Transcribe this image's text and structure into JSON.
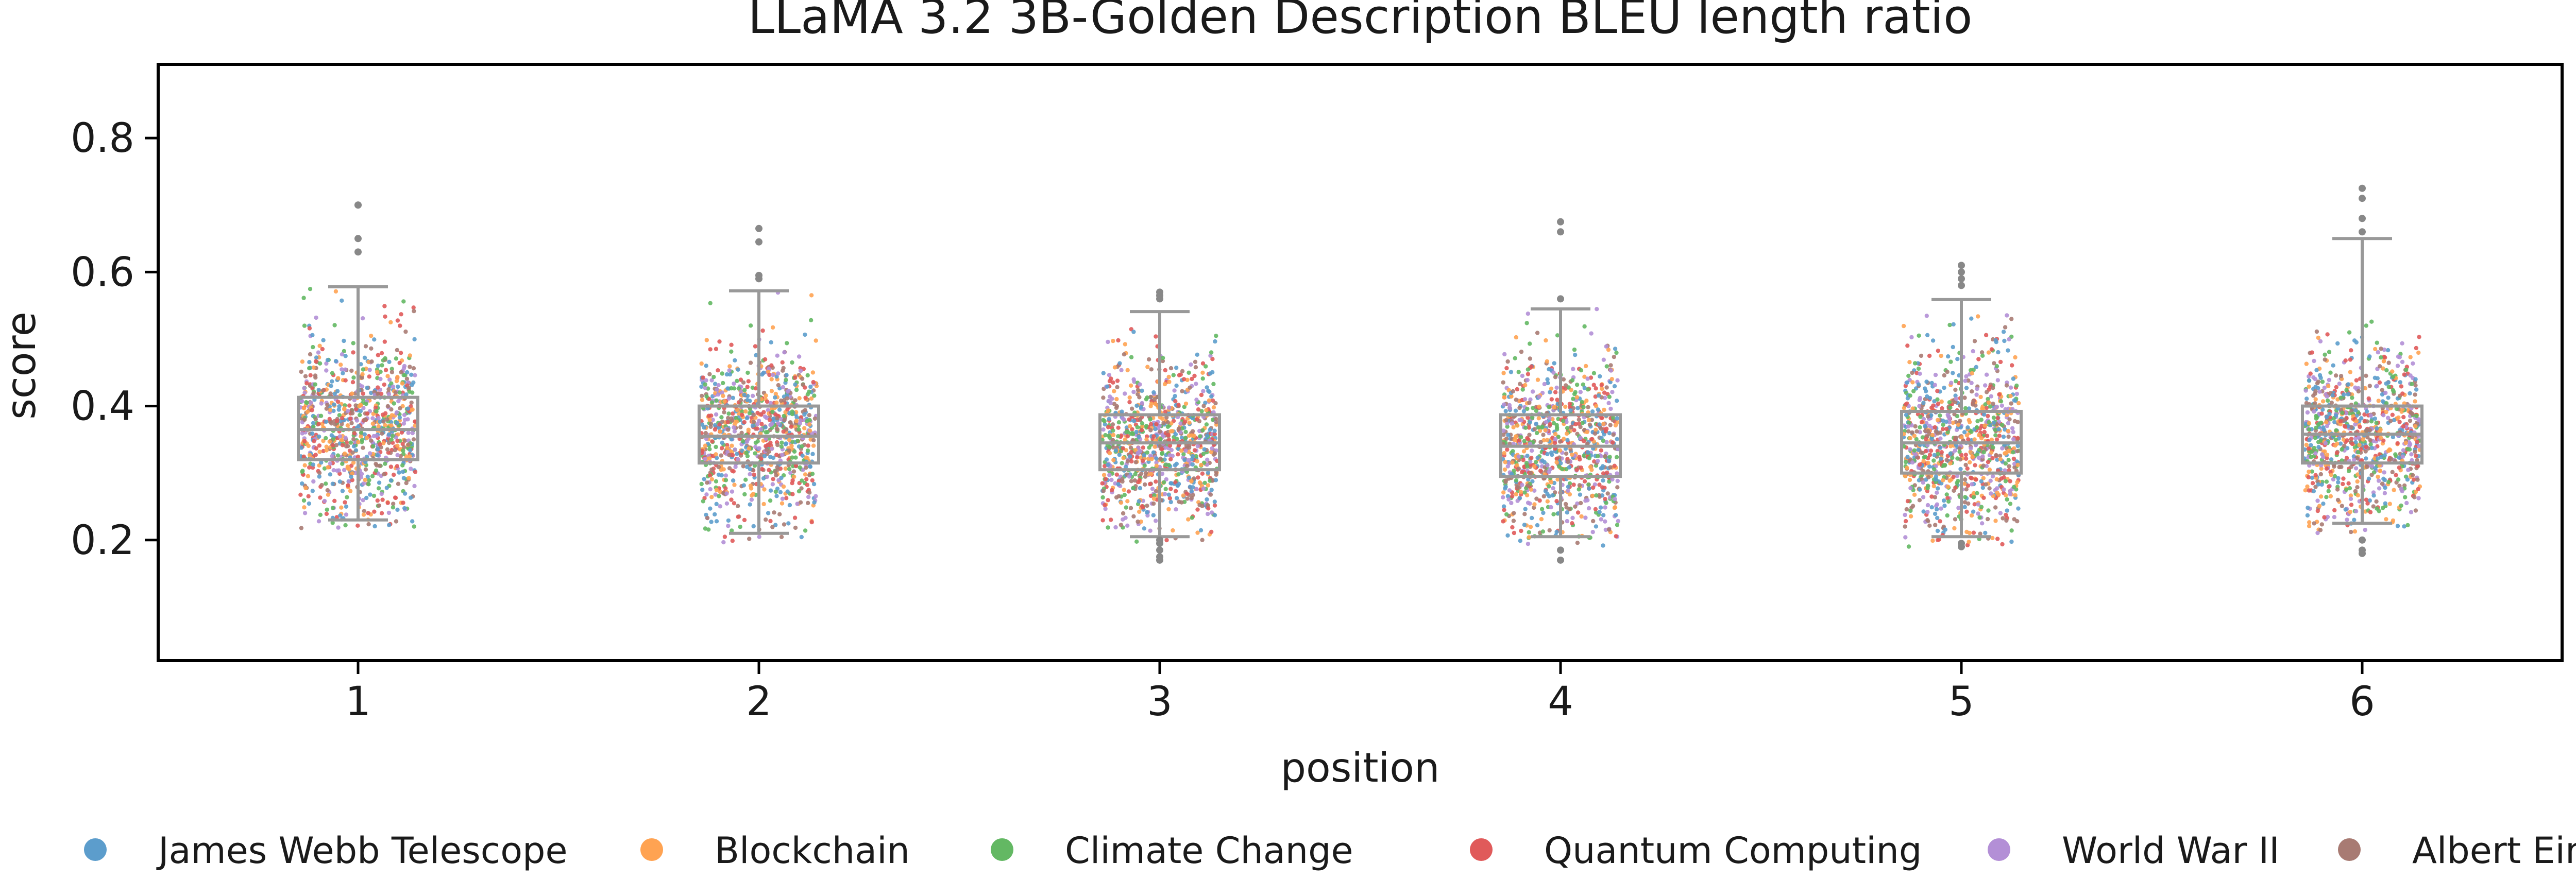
{
  "chart_data": {
    "type": "box",
    "title": "LLaMA 3.2 3B-Golden Description BLEU length ratio",
    "xlabel": "position",
    "ylabel": "score",
    "ylim": [
      0.02,
      0.91
    ],
    "yticks": [
      "0.2",
      "0.4",
      "0.6",
      "0.8"
    ],
    "ytick_values": [
      0.2,
      0.4,
      0.6,
      0.8
    ],
    "categories": [
      "1",
      "2",
      "3",
      "4",
      "5",
      "6"
    ],
    "grid": false,
    "legend_position": "bottom",
    "box_color": "#999999",
    "boxes": [
      {
        "position": "1",
        "whisker_low": 0.23,
        "q1": 0.32,
        "median": 0.365,
        "q3": 0.413,
        "whisker_high": 0.578,
        "outliers": [
          0.63,
          0.65,
          0.7,
          0.7
        ]
      },
      {
        "position": "2",
        "whisker_low": 0.21,
        "q1": 0.315,
        "median": 0.355,
        "q3": 0.4,
        "whisker_high": 0.572,
        "outliers": [
          0.59,
          0.595,
          0.645,
          0.665
        ]
      },
      {
        "position": "3",
        "whisker_low": 0.205,
        "q1": 0.305,
        "median": 0.345,
        "q3": 0.387,
        "whisker_high": 0.541,
        "outliers": [
          0.56,
          0.565,
          0.57,
          0.2,
          0.195,
          0.185,
          0.175,
          0.17
        ]
      },
      {
        "position": "4",
        "whisker_low": 0.205,
        "q1": 0.295,
        "median": 0.34,
        "q3": 0.387,
        "whisker_high": 0.545,
        "outliers": [
          0.56,
          0.66,
          0.675,
          0.185,
          0.17
        ]
      },
      {
        "position": "5",
        "whisker_low": 0.205,
        "q1": 0.3,
        "median": 0.345,
        "q3": 0.392,
        "whisker_high": 0.559,
        "outliers": [
          0.58,
          0.59,
          0.6,
          0.61,
          0.195,
          0.19
        ]
      },
      {
        "position": "6",
        "whisker_low": 0.225,
        "q1": 0.315,
        "median": 0.358,
        "q3": 0.4,
        "whisker_high": 0.65,
        "outliers": [
          0.66,
          0.68,
          0.71,
          0.725,
          0.2,
          0.185,
          0.18
        ]
      }
    ],
    "series": [
      {
        "name": "James Webb Telescope",
        "color": "#5c9dcc"
      },
      {
        "name": "Blockchain",
        "color": "#ffa352"
      },
      {
        "name": "Climate Change",
        "color": "#63b863"
      },
      {
        "name": "Quantum Computing",
        "color": "#e05a5a"
      },
      {
        "name": "World War II",
        "color": "#b38fd6"
      },
      {
        "name": "Albert Einstein",
        "color": "#a87b73"
      }
    ]
  }
}
